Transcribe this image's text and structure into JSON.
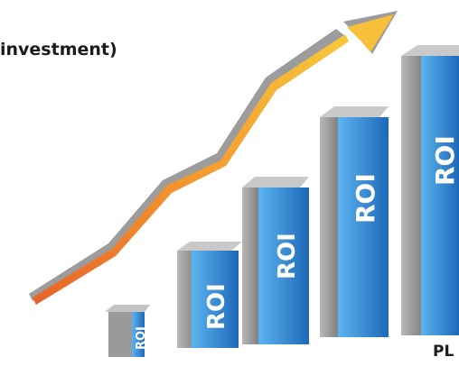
{
  "header": {
    "caption": "investment)"
  },
  "footer": {
    "text": "PL"
  },
  "bar_label": "ROI",
  "colors": {
    "bar_face_light": "#4aa3e6",
    "bar_face_dark": "#1f6fbf",
    "bar_side": "#8a8a8a",
    "bar_top": "#c9c9c9",
    "arrow_gray": "#9a9a9a",
    "arrow_orange": "#f0922b",
    "arrow_yellow": "#f5c23a",
    "text_dark": "#1c1c1c"
  }
}
